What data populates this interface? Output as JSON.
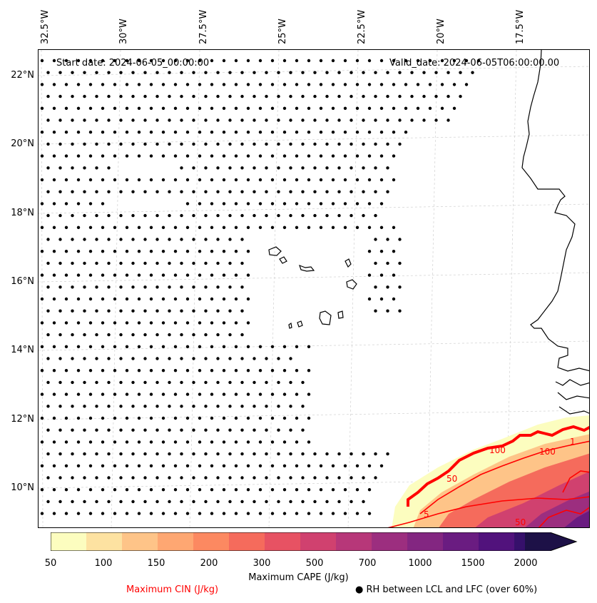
{
  "header": {
    "start_date": "Start date: 2024-06-05_00:00:00",
    "valid_date": "Valid_date: 2024-06-05T06:00:00.00"
  },
  "axes": {
    "lon_labels": [
      "32.5°W",
      "30°W",
      "27.5°W",
      "25°W",
      "22.5°W",
      "20°W",
      "17.5°W"
    ],
    "lat_labels": [
      "22°N",
      "20°N",
      "18°N",
      "16°N",
      "14°N",
      "12°N",
      "10°N"
    ]
  },
  "colorbar": {
    "title": "Maximum CAPE (J/kg)",
    "tick_labels": [
      "50",
      "100",
      "150",
      "200",
      "300",
      "500",
      "700",
      "1000",
      "1500",
      "2000"
    ],
    "colors": [
      "#fcfdbf",
      "#fde2a1",
      "#fec488",
      "#fea772",
      "#fc8961",
      "#f56b5c",
      "#e75263",
      "#d0416f",
      "#b73779",
      "#9c2e7f",
      "#832681",
      "#6a1c81",
      "#51127c",
      "#36106b",
      "#1d1147"
    ]
  },
  "contour_labels": [
    "100",
    "100",
    "50",
    "50",
    "1",
    "5"
  ],
  "legend": {
    "cin_label": "Maximum CIN (J/kg)",
    "rh_label": "● RH between LCL and LFC (over 60%)"
  },
  "colors": {
    "coast": "#000000",
    "cin_contour": "#ff0000",
    "grid": "#d0d0d0"
  }
}
